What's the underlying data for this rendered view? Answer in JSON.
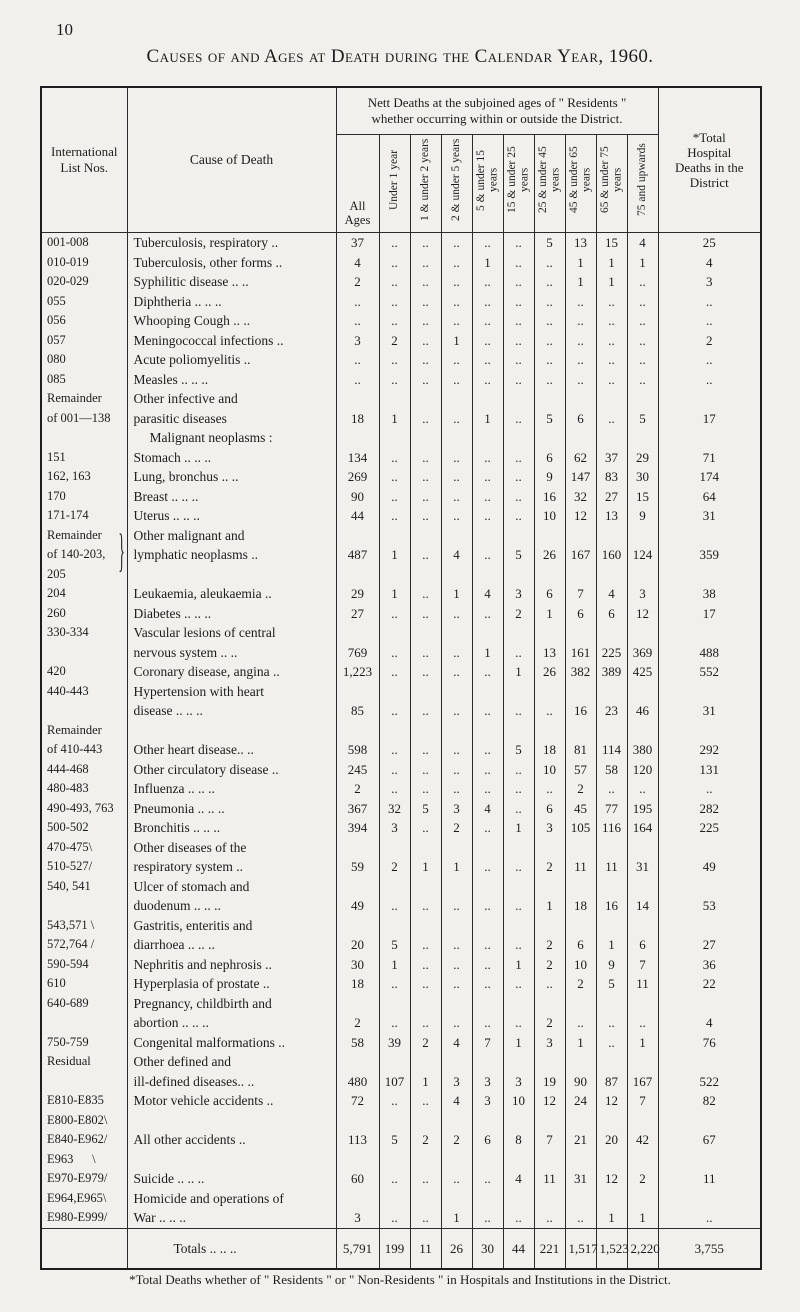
{
  "page": {
    "number": "10",
    "title": "Causes of and Ages at Death during the Calendar Year, 1960.",
    "footnote": "*Total Deaths whether of \" Residents \" or \" Non-Residents \" in Hospitals and Institutions in the District."
  },
  "table": {
    "header": {
      "col_intl": "International List Nos.",
      "col_cause": "Cause of Death",
      "span_title": "Nett Deaths at the subjoined ages of \" Residents \" whether occurring within or outside the District.",
      "age_cols": [
        "All Ages",
        "Under 1 year",
        "1 & under 2 years",
        "2 & under 5 years",
        "5 & under 15 years",
        "15 & under 25 years",
        "25 & under 45 years",
        "45 & under 65 years",
        "65 & under 75 years",
        "75 and upwards"
      ],
      "col_total": "*Total Hospital Deaths in the District"
    },
    "rows": [
      {
        "nos": "001-008",
        "cause": "Tuberculosis, respiratory ..",
        "values": [
          "37",
          "..",
          "..",
          "..",
          "..",
          "..",
          "5",
          "13",
          "15",
          "4",
          "25"
        ]
      },
      {
        "nos": "010-019",
        "cause": "Tuberculosis, other forms ..",
        "values": [
          "4",
          "..",
          "..",
          "..",
          "1",
          "..",
          "..",
          "1",
          "1",
          "1",
          "4"
        ]
      },
      {
        "nos": "020-029",
        "cause": "Syphilitic disease .. ..",
        "values": [
          "2",
          "..",
          "..",
          "..",
          "..",
          "..",
          "..",
          "1",
          "1",
          "..",
          "3"
        ]
      },
      {
        "nos": "055",
        "cause": "Diphtheria .. .. ..",
        "values": [
          "..",
          "..",
          "..",
          "..",
          "..",
          "..",
          "..",
          "..",
          "..",
          "..",
          ".."
        ]
      },
      {
        "nos": "056",
        "cause": "Whooping Cough .. ..",
        "values": [
          "..",
          "..",
          "..",
          "..",
          "..",
          "..",
          "..",
          "..",
          "..",
          "..",
          ".."
        ]
      },
      {
        "nos": "057",
        "cause": "Meningococcal infections ..",
        "values": [
          "3",
          "2",
          "..",
          "1",
          "..",
          "..",
          "..",
          "..",
          "..",
          "..",
          "2"
        ]
      },
      {
        "nos": "080",
        "cause": "Acute poliomyelitis ..",
        "values": [
          "..",
          "..",
          "..",
          "..",
          "..",
          "..",
          "..",
          "..",
          "..",
          "..",
          ".."
        ]
      },
      {
        "nos": "085",
        "cause": "Measles .. .. ..",
        "values": [
          "..",
          "..",
          "..",
          "..",
          "..",
          "..",
          "..",
          "..",
          "..",
          "..",
          ".."
        ]
      },
      {
        "nos": "Remainder\nof 001—138",
        "cause": "Other infective and\nparasitic diseases",
        "values": [
          "18",
          "1",
          "..",
          "..",
          "1",
          "..",
          "5",
          "6",
          "..",
          "5",
          "17"
        ]
      },
      {
        "cls": "subhead",
        "nos": "",
        "cause": "Malignant neoplasms :",
        "values": [
          "",
          "",
          "",
          "",
          "",
          "",
          "",
          "",
          "",
          "",
          ""
        ]
      },
      {
        "nos": "151",
        "cause": "Stomach .. .. ..",
        "values": [
          "134",
          "..",
          "..",
          "..",
          "..",
          "..",
          "6",
          "62",
          "37",
          "29",
          "71"
        ]
      },
      {
        "nos": "162, 163",
        "cause": "Lung, bronchus .. ..",
        "values": [
          "269",
          "..",
          "..",
          "..",
          "..",
          "..",
          "9",
          "147",
          "83",
          "30",
          "174"
        ]
      },
      {
        "nos": "170",
        "cause": "Breast .. .. ..",
        "values": [
          "90",
          "..",
          "..",
          "..",
          "..",
          "..",
          "16",
          "32",
          "27",
          "15",
          "64"
        ]
      },
      {
        "nos": "171-174",
        "cause": "Uterus .. .. ..",
        "values": [
          "44",
          "..",
          "..",
          "..",
          "..",
          "..",
          "10",
          "12",
          "13",
          "9",
          "31"
        ]
      },
      {
        "nos": "Remainder\nof 140-203,\n205",
        "brace": true,
        "mid": true,
        "cause": "Other malignant and\nlymphatic neoplasms ..",
        "values": [
          "487",
          "1",
          "..",
          "4",
          "..",
          "5",
          "26",
          "167",
          "160",
          "124",
          "359"
        ]
      },
      {
        "nos": "204",
        "cause": "Leukaemia, aleukaemia ..",
        "values": [
          "29",
          "1",
          "..",
          "1",
          "4",
          "3",
          "6",
          "7",
          "4",
          "3",
          "38"
        ]
      },
      {
        "nos": "260",
        "cause": "Diabetes .. .. ..",
        "values": [
          "27",
          "..",
          "..",
          "..",
          "..",
          "2",
          "1",
          "6",
          "6",
          "12",
          "17"
        ]
      },
      {
        "nos": "330-334",
        "cause": "Vascular lesions of central\nnervous system .. ..",
        "values": [
          "769",
          "..",
          "..",
          "..",
          "1",
          "..",
          "13",
          "161",
          "225",
          "369",
          "488"
        ]
      },
      {
        "nos": "420",
        "cause": "Coronary disease, angina ..",
        "values": [
          "1,223",
          "..",
          "..",
          "..",
          "..",
          "1",
          "26",
          "382",
          "389",
          "425",
          "552"
        ]
      },
      {
        "nos": "440-443",
        "cause": "Hypertension with heart\ndisease .. .. ..",
        "values": [
          "85",
          "..",
          "..",
          "..",
          "..",
          "..",
          "..",
          "16",
          "23",
          "46",
          "31"
        ]
      },
      {
        "nos": "Remainder\nof 410-443",
        "cause": "\nOther heart disease.. ..",
        "values": [
          "598",
          "..",
          "..",
          "..",
          "..",
          "5",
          "18",
          "81",
          "114",
          "380",
          "292"
        ]
      },
      {
        "nos": "444-468",
        "cause": "Other circulatory disease ..",
        "values": [
          "245",
          "..",
          "..",
          "..",
          "..",
          "..",
          "10",
          "57",
          "58",
          "120",
          "131"
        ]
      },
      {
        "nos": "480-483",
        "cause": "Influenza .. .. ..",
        "values": [
          "2",
          "..",
          "..",
          "..",
          "..",
          "..",
          "..",
          "2",
          "..",
          "..",
          ".."
        ]
      },
      {
        "nos": "490-493, 763",
        "cause": "Pneumonia .. .. ..",
        "values": [
          "367",
          "32",
          "5",
          "3",
          "4",
          "..",
          "6",
          "45",
          "77",
          "195",
          "282"
        ]
      },
      {
        "nos": "500-502",
        "cause": "Bronchitis .. .. ..",
        "values": [
          "394",
          "3",
          "..",
          "2",
          "..",
          "1",
          "3",
          "105",
          "116",
          "164",
          "225"
        ]
      },
      {
        "nos": "470-475\\\n510-527/",
        "cause": "Other diseases of the\nrespiratory system ..",
        "values": [
          "59",
          "2",
          "1",
          "1",
          "..",
          "..",
          "2",
          "11",
          "11",
          "31",
          "49"
        ]
      },
      {
        "nos": "540, 541",
        "cause": "Ulcer of stomach and\nduodenum .. .. ..",
        "values": [
          "49",
          "..",
          "..",
          "..",
          "..",
          "..",
          "1",
          "18",
          "16",
          "14",
          "53"
        ]
      },
      {
        "nos": "543,571 \\\n572,764 /",
        "cause": "Gastritis, enteritis and\ndiarrhoea .. .. ..",
        "values": [
          "20",
          "5",
          "..",
          "..",
          "..",
          "..",
          "2",
          "6",
          "1",
          "6",
          "27"
        ]
      },
      {
        "nos": "590-594",
        "cause": "Nephritis and nephrosis ..",
        "values": [
          "30",
          "1",
          "..",
          "..",
          "..",
          "1",
          "2",
          "10",
          "9",
          "7",
          "36"
        ]
      },
      {
        "nos": "610",
        "cause": "Hyperplasia of prostate ..",
        "values": [
          "18",
          "..",
          "..",
          "..",
          "..",
          "..",
          "..",
          "2",
          "5",
          "11",
          "22"
        ]
      },
      {
        "nos": "640-689",
        "cause": "Pregnancy, childbirth and\nabortion .. .. ..",
        "values": [
          "2",
          "..",
          "..",
          "..",
          "..",
          "..",
          "2",
          "..",
          "..",
          "..",
          "4"
        ]
      },
      {
        "nos": "750-759",
        "cause": "Congenital malformations ..",
        "values": [
          "58",
          "39",
          "2",
          "4",
          "7",
          "1",
          "3",
          "1",
          "..",
          "1",
          "76"
        ]
      },
      {
        "nos": "Residual",
        "cause": "Other defined and\nill-defined diseases.. ..",
        "values": [
          "480",
          "107",
          "1",
          "3",
          "3",
          "3",
          "19",
          "90",
          "87",
          "167",
          "522"
        ]
      },
      {
        "nos": "E810-E835",
        "cause": "Motor vehicle accidents ..",
        "values": [
          "72",
          "..",
          "..",
          "4",
          "3",
          "10",
          "12",
          "24",
          "12",
          "7",
          "82"
        ]
      },
      {
        "nos": "E800-E802\\\nE840-E962/",
        "cause": "\nAll other accidents ..",
        "values": [
          "113",
          "5",
          "2",
          "2",
          "6",
          "8",
          "7",
          "21",
          "20",
          "42",
          "67"
        ]
      },
      {
        "nos": "E963      \\\nE970-E979/",
        "cause": "\nSuicide .. .. ..",
        "values": [
          "60",
          "..",
          "..",
          "..",
          "..",
          "4",
          "11",
          "31",
          "12",
          "2",
          "11"
        ]
      },
      {
        "nos": "E964,E965\\\nE980-E999/",
        "cause": "Homicide and operations of\nWar .. .. ..",
        "values": [
          "3",
          "..",
          "..",
          "1",
          "..",
          "..",
          "..",
          "..",
          "1",
          "1",
          ".."
        ]
      },
      {
        "cls": "totals",
        "nos": "",
        "cause": "Totals .. .. ..",
        "values": [
          "5,791",
          "199",
          "11",
          "26",
          "30",
          "44",
          "221",
          "1,517",
          "1,523",
          "2,220",
          "3,755"
        ]
      }
    ]
  }
}
